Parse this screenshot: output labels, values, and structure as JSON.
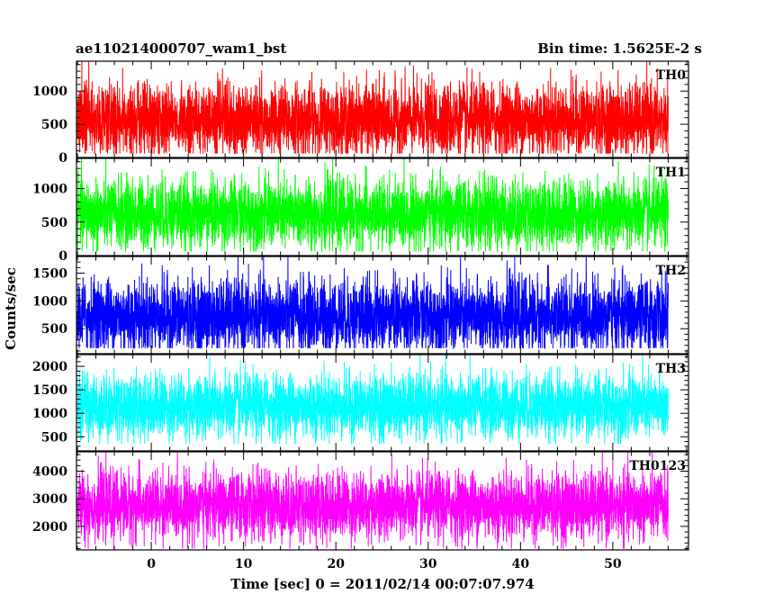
{
  "chart_data": {
    "type": "line",
    "title_left": "ae110214000707_wam1_bst",
    "title_right": "Bin time: 1.5625E-2 s",
    "xlabel": "Time [sec] 0 = 2011/02/14 00:07:07.974",
    "ylabel": "Counts/sec",
    "xlim": [
      -8.1,
      58.2
    ],
    "x_data_range": [
      -8.0,
      56.0
    ],
    "x_ticks": [
      0,
      10,
      20,
      30,
      40,
      50
    ],
    "panels": [
      {
        "name": "TH0",
        "color": "#ff0000",
        "ylim": [
          0,
          1450
        ],
        "y_ticks": [
          0,
          500,
          1000
        ],
        "mean": 560,
        "min": 60,
        "max": 1450
      },
      {
        "name": "TH1",
        "color": "#00ff00",
        "ylim": [
          0,
          1450
        ],
        "y_ticks": [
          0,
          500,
          1000
        ],
        "mean": 620,
        "min": 60,
        "max": 1450
      },
      {
        "name": "TH2",
        "color": "#0000ff",
        "ylim": [
          50,
          1800
        ],
        "y_ticks": [
          500,
          1000,
          1500
        ],
        "mean": 720,
        "min": 150,
        "max": 1800
      },
      {
        "name": "TH3",
        "color": "#00ffff",
        "ylim": [
          200,
          2250
        ],
        "y_ticks": [
          500,
          1000,
          1500,
          2000
        ],
        "mean": 1150,
        "min": 350,
        "max": 2250
      },
      {
        "name": "TH0123",
        "color": "#ff00ff",
        "ylim": [
          1150,
          4700
        ],
        "y_ticks": [
          2000,
          3000,
          4000
        ],
        "mean": 2750,
        "min": 1200,
        "max": 4700
      }
    ]
  }
}
